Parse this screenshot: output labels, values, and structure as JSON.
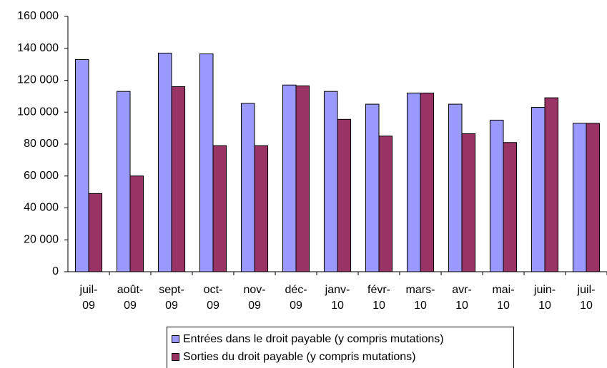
{
  "chart_data": {
    "type": "bar",
    "categories": [
      "juil-09",
      "août-09",
      "sept-09",
      "oct-09",
      "nov-09",
      "déc-09",
      "janv-10",
      "févr-10",
      "mars-10",
      "avr-10",
      "mai-10",
      "juin-10",
      "juil-10"
    ],
    "series": [
      {
        "name": "Entrées dans le droit payable (y compris mutations)",
        "color": "#9999ff",
        "values": [
          133000,
          113000,
          137000,
          136500,
          105500,
          117000,
          113000,
          105000,
          112000,
          105000,
          95000,
          103000,
          93000
        ]
      },
      {
        "name": "Sorties du droit payable (y compris mutations)",
        "color": "#993366",
        "values": [
          49000,
          60000,
          116000,
          79000,
          79000,
          116500,
          95500,
          85000,
          112000,
          86500,
          81000,
          109000,
          93000
        ]
      }
    ],
    "ylim": [
      0,
      160000
    ],
    "yticks": [
      0,
      {
        "value": 20000,
        "label": "20 000"
      },
      {
        "value": 40000,
        "label": "40 000"
      },
      {
        "value": 60000,
        "label": "60 000"
      },
      {
        "value": 80000,
        "label": "80 000"
      },
      {
        "value": 100000,
        "label": "100 000"
      },
      {
        "value": 120000,
        "label": "120 000"
      },
      {
        "value": 140000,
        "label": "140 000"
      },
      {
        "value": 160000,
        "label": "160 000"
      }
    ],
    "grid": false
  }
}
